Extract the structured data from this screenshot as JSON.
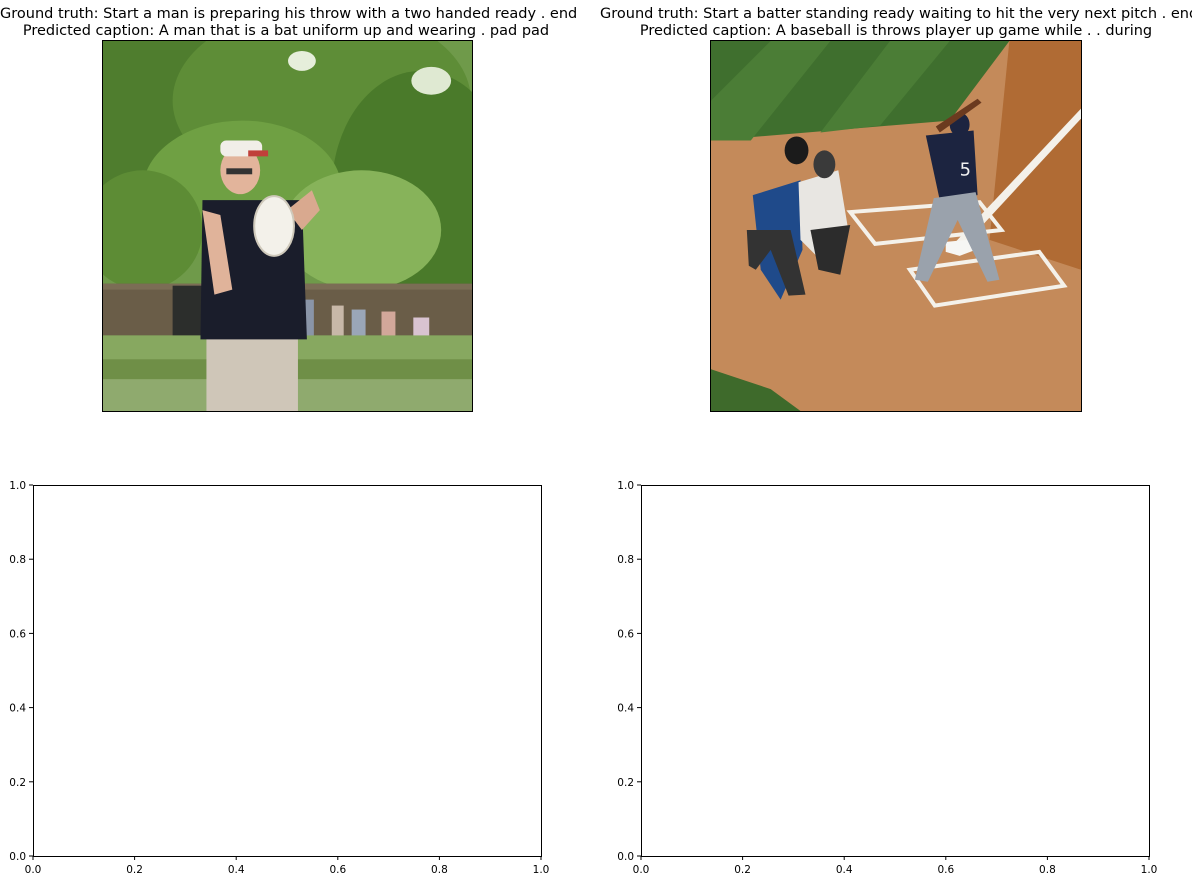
{
  "panels": [
    {
      "ground_truth": "Ground truth: Start a man is preparing his throw with a two handed ready . end",
      "predicted": "Predicted caption: A man that is a bat uniform up and wearing . pad pad"
    },
    {
      "ground_truth": "Ground truth: Start a batter standing ready waiting to hit the very next pitch . end",
      "predicted": "Predicted caption: A baseball is throws player up game while . . during"
    }
  ],
  "empty_axes": [
    {
      "xticks": [
        "0.0",
        "0.2",
        "0.4",
        "0.6",
        "0.8",
        "1.0"
      ],
      "yticks": [
        "0.0",
        "0.2",
        "0.4",
        "0.6",
        "0.8",
        "1.0"
      ]
    },
    {
      "xticks": [
        "0.0",
        "0.2",
        "0.4",
        "0.6",
        "0.8",
        "1.0"
      ],
      "yticks": [
        "0.0",
        "0.2",
        "0.4",
        "0.6",
        "0.8",
        "1.0"
      ]
    }
  ]
}
